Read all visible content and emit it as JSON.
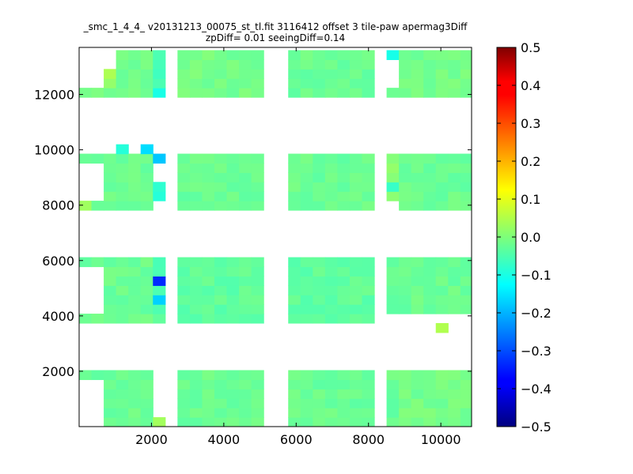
{
  "chart_data": {
    "type": "heatmap",
    "title_lines": [
      "_smc_1_4_4_ v20131213_00075_st_tl.fit 3116412 offset 3 tile-paw apermag3Diff",
      "zpDiff= 0.01 seeingDiff=0.14"
    ],
    "xlabel": "",
    "ylabel": "",
    "xlim": [
      0,
      10850
    ],
    "ylim": [
      0,
      13700
    ],
    "x_ticks": [
      2000,
      4000,
      6000,
      8000,
      10000
    ],
    "y_ticks": [
      2000,
      4000,
      6000,
      8000,
      10000,
      12000
    ],
    "cell_size": [
      340,
      340
    ],
    "colorbar": {
      "colormap": "jet",
      "range": [
        -0.5,
        0.5
      ],
      "ticks": [
        "0.5",
        "0.4",
        "0.3",
        "0.2",
        "0.1",
        "0.0",
        "−0.1",
        "−0.2",
        "−0.3",
        "−0.4",
        "−0.5"
      ]
    },
    "default_value": -0.02,
    "regions": [
      {
        "x": [
          0,
          2000
        ],
        "y": [
          0,
          2000
        ],
        "value": -0.02
      },
      {
        "x": [
          0,
          650
        ],
        "y": [
          0,
          1700
        ],
        "value": null
      },
      {
        "x": [
          2000,
          2370
        ],
        "y": [
          0,
          450
        ],
        "value": 0.03
      },
      {
        "x": [
          2800,
          5100
        ],
        "y": [
          0,
          2000
        ],
        "value": -0.02
      },
      {
        "x": [
          5800,
          8200
        ],
        "y": [
          0,
          2000
        ],
        "value": -0.02
      },
      {
        "x": [
          8600,
          8850
        ],
        "y": [
          0,
          2000
        ],
        "value": -0.02
      },
      {
        "x": [
          8850,
          10850
        ],
        "y": [
          0,
          2000
        ],
        "value": -0.01
      },
      {
        "x": [
          0,
          2000
        ],
        "y": [
          3900,
          6000
        ],
        "value": -0.02
      },
      {
        "x": [
          0,
          650
        ],
        "y": [
          4200,
          5700
        ],
        "value": null
      },
      {
        "x": [
          2000,
          2370
        ],
        "y": [
          3900,
          6000
        ],
        "value": -0.04
      },
      {
        "x": [
          2000,
          2370
        ],
        "y": [
          5200,
          5600
        ],
        "value": -0.32
      },
      {
        "x": [
          2000,
          2370
        ],
        "y": [
          4300,
          4700
        ],
        "value": -0.18
      },
      {
        "x": [
          2800,
          5100
        ],
        "y": [
          3900,
          6000
        ],
        "value": -0.03
      },
      {
        "x": [
          5800,
          8200
        ],
        "y": [
          3900,
          6000
        ],
        "value": -0.03
      },
      {
        "x": [
          8600,
          8850
        ],
        "y": [
          4100,
          6000
        ],
        "value": -0.02
      },
      {
        "x": [
          8850,
          10850
        ],
        "y": [
          4100,
          6000
        ],
        "value": -0.02
      },
      {
        "x": [
          10000,
          10350
        ],
        "y": [
          3500,
          3900
        ],
        "value": 0.05
      },
      {
        "x": [
          0,
          2000
        ],
        "y": [
          7700,
          9900
        ],
        "value": -0.02
      },
      {
        "x": [
          0,
          650
        ],
        "y": [
          8000,
          9500
        ],
        "value": null
      },
      {
        "x": [
          0,
          400
        ],
        "y": [
          7700,
          8100
        ],
        "value": 0.04
      },
      {
        "x": [
          1050,
          1500
        ],
        "y": [
          9900,
          10300
        ],
        "value": -0.08
      },
      {
        "x": [
          1750,
          2200
        ],
        "y": [
          9900,
          10300
        ],
        "value": -0.17
      },
      {
        "x": [
          2000,
          2370
        ],
        "y": [
          9500,
          9900
        ],
        "value": -0.19
      },
      {
        "x": [
          2000,
          2370
        ],
        "y": [
          8200,
          9000
        ],
        "value": -0.09
      },
      {
        "x": [
          2800,
          5100
        ],
        "y": [
          7700,
          9900
        ],
        "value": -0.02
      },
      {
        "x": [
          5800,
          8200
        ],
        "y": [
          7700,
          9900
        ],
        "value": -0.02
      },
      {
        "x": [
          8600,
          8850
        ],
        "y": [
          8100,
          9900
        ],
        "value": 0.02
      },
      {
        "x": [
          8600,
          8850
        ],
        "y": [
          8600,
          9000
        ],
        "value": -0.07
      },
      {
        "x": [
          8850,
          10850
        ],
        "y": [
          7700,
          9900
        ],
        "value": -0.02
      },
      {
        "x": [
          0,
          2000
        ],
        "y": [
          11800,
          13700
        ],
        "value": -0.01
      },
      {
        "x": [
          0,
          1000
        ],
        "y": [
          12200,
          13700
        ],
        "value": null
      },
      {
        "x": [
          650,
          1000
        ],
        "y": [
          12200,
          12900
        ],
        "value": 0.03
      },
      {
        "x": [
          2000,
          2370
        ],
        "y": [
          11800,
          13700
        ],
        "value": -0.05
      },
      {
        "x": [
          2000,
          2370
        ],
        "y": [
          11800,
          12200
        ],
        "value": -0.09
      },
      {
        "x": [
          2800,
          5100
        ],
        "y": [
          11800,
          13700
        ],
        "value": -0.01
      },
      {
        "x": [
          5800,
          8200
        ],
        "y": [
          11800,
          13700
        ],
        "value": -0.02
      },
      {
        "x": [
          8600,
          8850
        ],
        "y": [
          11800,
          12200
        ],
        "value": -0.02
      },
      {
        "x": [
          8600,
          8850
        ],
        "y": [
          12200,
          12900
        ],
        "value": null
      },
      {
        "x": [
          8600,
          8850
        ],
        "y": [
          13300,
          13700
        ],
        "value": -0.11
      },
      {
        "x": [
          8850,
          10850
        ],
        "y": [
          11800,
          13700
        ],
        "value": -0.01
      }
    ]
  }
}
